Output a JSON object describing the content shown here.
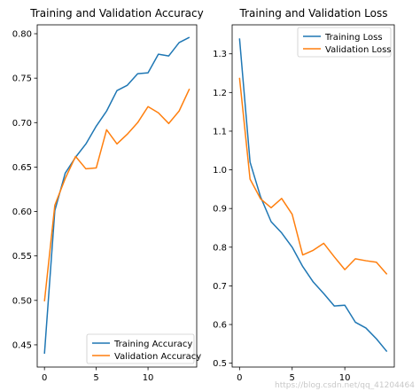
{
  "colors": {
    "series_0": "#1f77b4",
    "series_1": "#ff7f0e"
  },
  "watermark": "https://blog.csdn.net/qq_41204464",
  "chart_data": [
    {
      "type": "line",
      "title": "Training and Validation Accuracy",
      "xlabel": "",
      "ylabel": "",
      "x": [
        0,
        1,
        2,
        3,
        4,
        5,
        6,
        7,
        8,
        9,
        10,
        11,
        12,
        13,
        14
      ],
      "xlim": [
        -0.7,
        14.7
      ],
      "ylim": [
        0.425,
        0.81
      ],
      "xticks": [
        0,
        5,
        10
      ],
      "xtick_labels": [
        "0",
        "5",
        "10"
      ],
      "yticks": [
        0.45,
        0.5,
        0.55,
        0.6,
        0.65,
        0.7,
        0.75,
        0.8
      ],
      "ytick_labels": [
        "0.45",
        "0.50",
        "0.55",
        "0.60",
        "0.65",
        "0.70",
        "0.75",
        "0.80"
      ],
      "grid": false,
      "legend_position": "lower-right",
      "series": [
        {
          "name": "Training Accuracy",
          "color": "#1f77b4",
          "values": [
            0.44,
            0.601,
            0.643,
            0.661,
            0.676,
            0.696,
            0.713,
            0.736,
            0.742,
            0.755,
            0.756,
            0.777,
            0.775,
            0.79,
            0.796
          ]
        },
        {
          "name": "Validation Accuracy",
          "color": "#ff7f0e",
          "values": [
            0.499,
            0.607,
            0.637,
            0.662,
            0.648,
            0.649,
            0.692,
            0.676,
            0.687,
            0.7,
            0.718,
            0.711,
            0.699,
            0.713,
            0.738
          ]
        }
      ]
    },
    {
      "type": "line",
      "title": "Training and Validation Loss",
      "xlabel": "",
      "ylabel": "",
      "x": [
        0,
        1,
        2,
        3,
        4,
        5,
        6,
        7,
        8,
        9,
        10,
        11,
        12,
        13,
        14
      ],
      "xlim": [
        -0.7,
        14.7
      ],
      "ylim": [
        0.49,
        1.375
      ],
      "xticks": [
        0,
        5,
        10
      ],
      "xtick_labels": [
        "0",
        "5",
        "10"
      ],
      "yticks": [
        0.5,
        0.6,
        0.7,
        0.8,
        0.9,
        1.0,
        1.1,
        1.2,
        1.3
      ],
      "ytick_labels": [
        "0.5",
        "0.6",
        "0.7",
        "0.8",
        "0.9",
        "1.0",
        "1.1",
        "1.2",
        "1.3"
      ],
      "grid": false,
      "legend_position": "upper-right",
      "series": [
        {
          "name": "Training Loss",
          "color": "#1f77b4",
          "values": [
            1.34,
            1.02,
            0.93,
            0.866,
            0.837,
            0.8,
            0.75,
            0.71,
            0.68,
            0.648,
            0.65,
            0.606,
            0.591,
            0.563,
            0.53
          ]
        },
        {
          "name": "Validation Loss",
          "color": "#ff7f0e",
          "values": [
            1.238,
            0.976,
            0.925,
            0.902,
            0.926,
            0.885,
            0.78,
            0.792,
            0.81,
            0.775,
            0.742,
            0.77,
            0.765,
            0.761,
            0.73
          ]
        }
      ]
    }
  ]
}
